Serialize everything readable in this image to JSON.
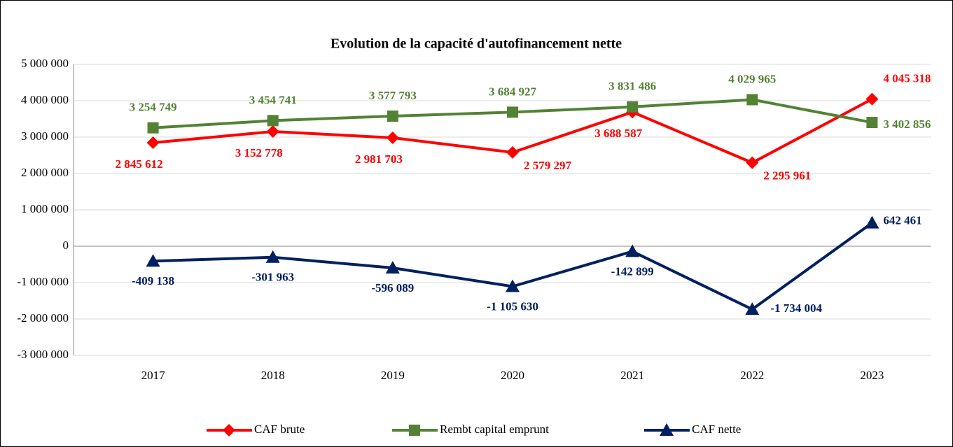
{
  "chart_data": {
    "type": "line",
    "title": "Evolution de la capacité d'autofinancement nette",
    "categories": [
      "2017",
      "2018",
      "2019",
      "2020",
      "2021",
      "2022",
      "2023"
    ],
    "series": [
      {
        "name": "CAF brute",
        "color": "#ff0000",
        "marker": "diamond",
        "values": [
          2845612,
          3152778,
          2981703,
          2579297,
          3688587,
          2295961,
          4045318
        ],
        "value_labels": [
          "2 845 612",
          "3 152 778",
          "2 981 703",
          "2 579 297",
          "3 688 587",
          "2 295 961",
          "4 045 318"
        ]
      },
      {
        "name": "Rembt capital emprunt",
        "color": "#548235",
        "marker": "square",
        "values": [
          3254749,
          3454741,
          3577793,
          3684927,
          3831486,
          4029965,
          3402856
        ],
        "value_labels": [
          "3 254 749",
          "3 454 741",
          "3 577 793",
          "3 684 927",
          "3 831 486",
          "4 029 965",
          "3 402 856"
        ]
      },
      {
        "name": "CAF nette",
        "color": "#002060",
        "marker": "triangle",
        "values": [
          -409138,
          -301963,
          -596089,
          -1105630,
          -142899,
          -1734004,
          642461
        ],
        "value_labels": [
          "-409 138",
          "-301 963",
          "-596 089",
          "-1 105 630",
          "-142 899",
          "-1 734 004",
          "642 461"
        ]
      }
    ],
    "ylim": [
      -3000000,
      5000000
    ],
    "yticks": [
      {
        "value": -3000000,
        "label": "-3 000 000"
      },
      {
        "value": -2000000,
        "label": "-2 000 000"
      },
      {
        "value": -1000000,
        "label": "-1 000 000"
      },
      0,
      {
        "value": 1000000,
        "label": "1 000 000"
      },
      {
        "value": 2000000,
        "label": "2 000 000"
      },
      {
        "value": 3000000,
        "label": "3 000 000"
      },
      {
        "value": 4000000,
        "label": "4 000 000"
      },
      {
        "value": 5000000,
        "label": "5 000 000"
      }
    ],
    "grid": true,
    "legend": "bottom"
  }
}
